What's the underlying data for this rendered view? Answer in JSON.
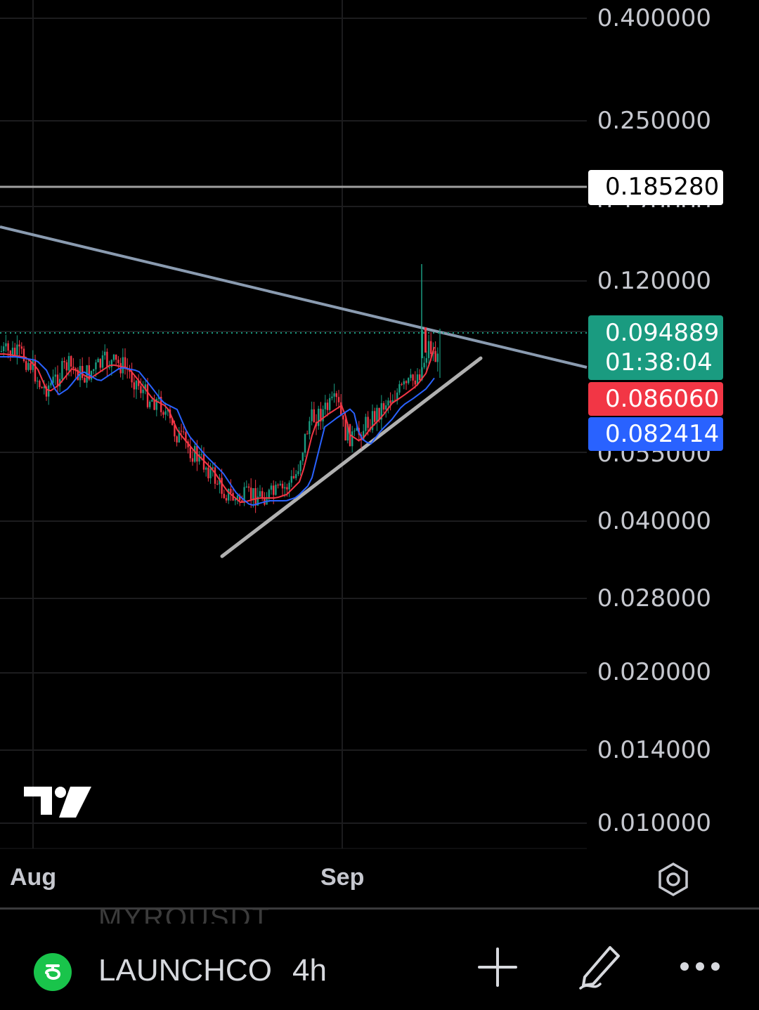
{
  "price_axis": {
    "labels": [
      "0.400000",
      "0.250000",
      "0.170000",
      "0.120000",
      "0.055000",
      "0.040000",
      "0.028000",
      "0.020000",
      "0.014000",
      "0.010000"
    ]
  },
  "tags": {
    "line_price": "0.185280",
    "last_price": "0.094889",
    "countdown": "01:38:04",
    "ma_fast": "0.086060",
    "ma_slow": "0.082414"
  },
  "time_axis": {
    "aug": "Aug",
    "sep": "Sep"
  },
  "bottom_bar": {
    "ghost_symbol": "MYROUSDT",
    "symbol": "LAUNCHCO",
    "interval": "4h"
  },
  "colors": {
    "up": "#1a9b80",
    "down": "#f23645",
    "ma_fast": "#f23645",
    "ma_slow": "#2962ff",
    "trendline": "#8a9bb0",
    "support_line": "#b0b0b0",
    "horizontal_line": "#a0a0a0"
  },
  "icons": [
    "settings-icon",
    "coin-icon",
    "add-icon",
    "pencil-icon",
    "more-icon",
    "tradingview-logo"
  ]
}
